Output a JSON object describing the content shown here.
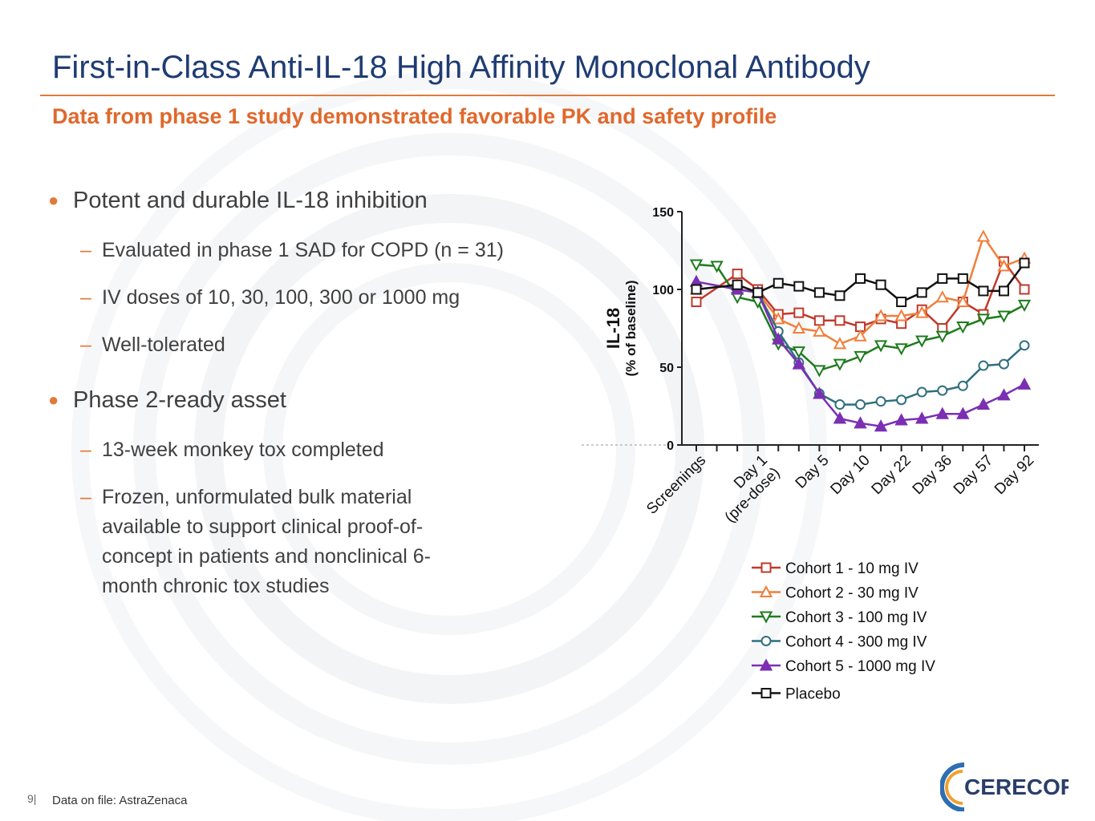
{
  "slide": {
    "title": "First-in-Class Anti-IL-18 High Affinity Monoclonal Antibody",
    "subtitle": "Data from phase 1 study demonstrated favorable PK and safety profile",
    "page_number": "9|",
    "footnote": "Data on file: AstraZenaca",
    "logo_text": "CERECOR"
  },
  "bullets": [
    {
      "text": "Potent and durable IL-18 inhibition",
      "subs": [
        "Evaluated in phase 1 SAD for COPD (n = 31)",
        "IV doses of 10, 30, 100, 300 or 1000 mg",
        "Well-tolerated"
      ]
    },
    {
      "text": "Phase 2-ready asset",
      "subs": [
        "13-week monkey tox completed",
        "Frozen, unformulated bulk material available to support clinical proof-of-concept in patients and nonclinical 6-month chronic tox studies"
      ]
    }
  ],
  "colors": {
    "title": "#1f3c73",
    "accent": "#e07a3a",
    "cohort1": "#c0392b",
    "cohort2": "#f07f3c",
    "cohort3": "#1e7b1e",
    "cohort4": "#2f6f7f",
    "cohort5": "#7b2fb3",
    "placebo": "#111111"
  },
  "chart_data": {
    "type": "line",
    "ylabel": "IL-18",
    "ylabel_sub": "(% of baseline)",
    "ylim": [
      0,
      150
    ],
    "yticks": [
      0,
      50,
      100,
      150
    ],
    "x_tick_labels": [
      "Screenings",
      "Day 1 (pre-dose)",
      "Day 5",
      "Day 10",
      "Day 22",
      "Day 36",
      "Day 57",
      "Day 92"
    ],
    "x_tick_positions": [
      2,
      5,
      8,
      10,
      12,
      14,
      16,
      18
    ],
    "x_count": 17,
    "series": [
      {
        "name": "Cohort 1 - 10 mg IV",
        "color_key": "cohort1",
        "marker": "square-open",
        "values": [
          92,
          null,
          110,
          100,
          84,
          85,
          80,
          80,
          76,
          81,
          78,
          87,
          75,
          92,
          84,
          118,
          100
        ]
      },
      {
        "name": "Cohort 2 - 30 mg IV",
        "color_key": "cohort2",
        "marker": "triangle-up-open",
        "values": [
          100,
          null,
          103,
          98,
          81,
          75,
          73,
          65,
          70,
          83,
          83,
          85,
          95,
          92,
          134,
          115,
          120
        ]
      },
      {
        "name": "Cohort 3 - 100 mg IV",
        "color_key": "cohort3",
        "marker": "triangle-down-open",
        "values": [
          116,
          115,
          95,
          92,
          65,
          60,
          48,
          52,
          57,
          64,
          62,
          67,
          70,
          76,
          81,
          83,
          90
        ]
      },
      {
        "name": "Cohort 4 - 300 mg IV",
        "color_key": "cohort4",
        "marker": "circle-open",
        "values": [
          null,
          null,
          100,
          98,
          73,
          53,
          33,
          26,
          26,
          28,
          29,
          34,
          35,
          38,
          51,
          52,
          64
        ]
      },
      {
        "name": "Cohort 5 - 1000 mg IV",
        "color_key": "cohort5",
        "marker": "triangle-up-filled",
        "values": [
          105,
          null,
          100,
          98,
          68,
          52,
          33,
          17,
          14,
          12,
          16,
          17,
          20,
          20,
          26,
          32,
          39
        ]
      },
      {
        "name": "Placebo",
        "color_key": "placebo",
        "marker": "square-open",
        "values": [
          100,
          null,
          103,
          98,
          104,
          102,
          98,
          96,
          107,
          103,
          92,
          98,
          107,
          107,
          99,
          99,
          117
        ]
      }
    ]
  }
}
